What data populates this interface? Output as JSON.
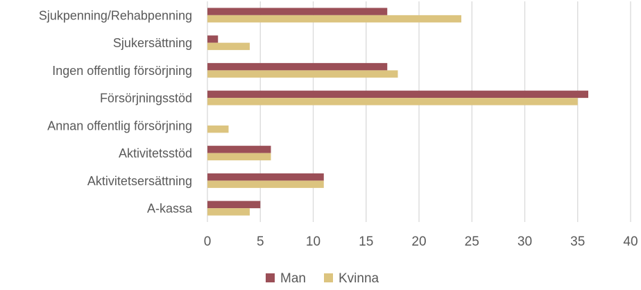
{
  "chart_data": {
    "type": "bar",
    "orientation": "horizontal",
    "categories": [
      "Sjukpenning/Rehabpenning",
      "Sjukersättning",
      "Ingen offentlig försörjning",
      "Försörjningsstöd",
      "Annan offentlig försörjning",
      "Aktivitetsstöd",
      "Aktivitetsersättning",
      "A-kassa"
    ],
    "series": [
      {
        "name": "Man",
        "color": "#9b4f57",
        "values": [
          17,
          1,
          17,
          36,
          0,
          6,
          11,
          5
        ]
      },
      {
        "name": "Kvinna",
        "color": "#dcc47f",
        "values": [
          24,
          4,
          18,
          35,
          2,
          6,
          11,
          4
        ]
      }
    ],
    "x_ticks": [
      "0",
      "5",
      "10",
      "15",
      "20",
      "25",
      "30",
      "35",
      "40"
    ],
    "xlim": [
      0,
      40
    ],
    "grid": true,
    "legend_position": "bottom-center"
  }
}
